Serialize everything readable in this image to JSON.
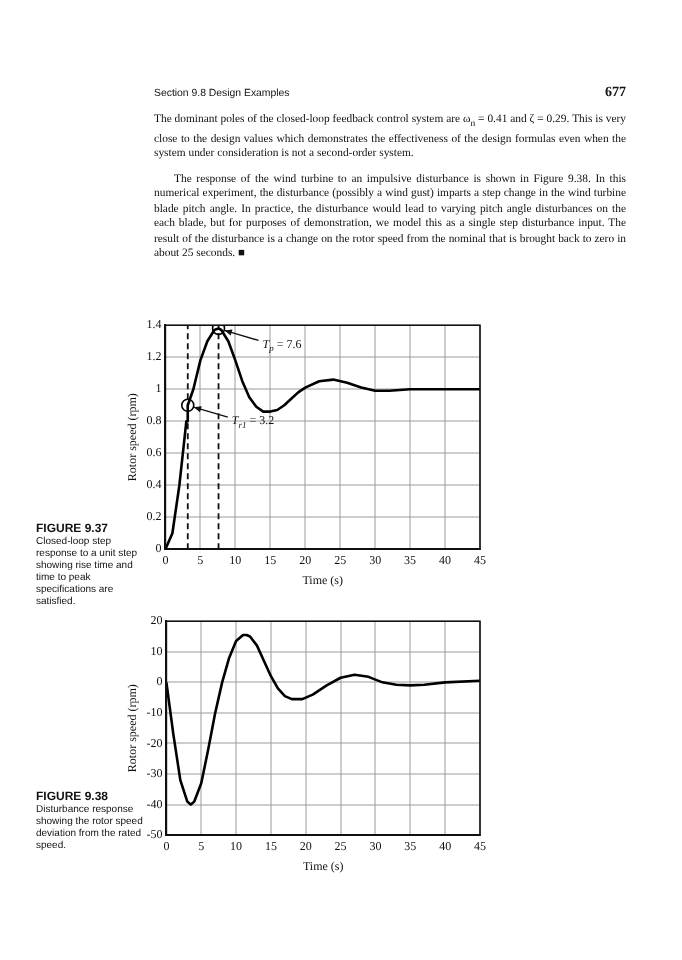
{
  "chart_data": [
    {
      "type": "line",
      "xlabel": "Time (s)",
      "ylabel": "Rotor speed (rpm)",
      "xlim": [
        0,
        45
      ],
      "xticks": [
        0,
        5,
        10,
        15,
        20,
        25,
        30,
        35,
        40,
        45
      ],
      "ylim": [
        0,
        1.4
      ],
      "yticks": [
        0,
        0.2,
        0.4,
        0.6,
        0.8,
        1,
        1.2,
        1.4
      ],
      "grid": true,
      "legend": false,
      "series": [
        {
          "color": "#000000",
          "marker": "none",
          "x": [
            0,
            1,
            2,
            3,
            3.2,
            4,
            5,
            6,
            7,
            7.6,
            8,
            9,
            10,
            11,
            12,
            13,
            14,
            15,
            16,
            17,
            18,
            19,
            20,
            22,
            24,
            26,
            28,
            30,
            32,
            35,
            38,
            41,
            45
          ],
          "values": [
            0,
            0.1,
            0.4,
            0.8,
            0.9,
            1.0,
            1.18,
            1.3,
            1.37,
            1.38,
            1.37,
            1.3,
            1.18,
            1.05,
            0.95,
            0.89,
            0.86,
            0.86,
            0.87,
            0.9,
            0.94,
            0.98,
            1.01,
            1.05,
            1.06,
            1.04,
            1.01,
            0.99,
            0.99,
            1.0,
            1.0,
            1.0,
            1.0
          ]
        },
        {
          "type": "scatter",
          "color": "#000000",
          "marker": "circle",
          "x": [
            3.2,
            7.6
          ],
          "values": [
            0.9,
            1.38
          ]
        }
      ],
      "ref_lines": [
        {
          "axis": "x",
          "value": 3.2,
          "line_style": "dashed"
        },
        {
          "axis": "x",
          "value": 7.6,
          "line_style": "dashed"
        }
      ],
      "annotations": [
        "Section 9.8   Design Examples",
        "677",
        "The dominant poles of the closed-loop feedback control system are ω$_{n}$ = 0.41 and ζ = 0.29. This is very close to the design values which demonstrates the effectiveness of the design formulas even when the system under consideration is not a second-order system.",
        "The response of the wind turbine to an impulsive disturbance is shown in Figure 9.38. In this numerical experiment, the disturbance (possibly a wind gust) imparts a step change in the wind turbine blade pitch angle. In practice, the disturbance would lead to varying pitch angle disturbances on the each blade, but for purposes of demonstration, we model this as a single step disturbance input. The result of the disturbance is a change on the rotor speed from the nominal that is brought back to zero in about 25 seconds. ■",
        "FIGURE 9.37 Closed-loop step response to a unit step showing rise time and time to peak specifications are satisfied.",
        {
          "text": "T$_{p}$ = 7.6",
          "x": 7.6,
          "y": 1.38
        },
        {
          "text": "T$_{r1}$ = 3.2",
          "x": 3.2,
          "y": 0.9
        }
      ]
    },
    {
      "type": "line",
      "xlabel": "Time (s)",
      "ylabel": "Rotor speed (rpm)",
      "xlim": [
        0,
        45
      ],
      "xticks": [
        0,
        5,
        10,
        15,
        20,
        25,
        30,
        35,
        40,
        45
      ],
      "ylim": [
        -50,
        20
      ],
      "yticks": [
        -50,
        -40,
        -30,
        -20,
        -10,
        0,
        10,
        20
      ],
      "grid": true,
      "legend": false,
      "series": [
        {
          "color": "#000000",
          "marker": "none",
          "x": [
            0,
            1,
            2,
            3,
            3.5,
            4,
            5,
            6,
            7,
            8,
            9,
            10,
            11,
            11.5,
            12,
            13,
            14,
            15,
            16,
            17,
            18,
            19.5,
            21,
            23,
            25,
            27,
            29,
            31,
            33,
            35,
            37,
            40,
            45
          ],
          "values": [
            0,
            -17,
            -32,
            -39,
            -40,
            -39,
            -33,
            -22,
            -10,
            0,
            8,
            13.5,
            15.5,
            15.5,
            15,
            12,
            7,
            2,
            -2,
            -4.5,
            -5.5,
            -5.5,
            -4,
            -1,
            1.5,
            2.5,
            1.8,
            0,
            -0.8,
            -1,
            -0.8,
            0,
            0.5
          ]
        }
      ],
      "annotations": [
        "FIGURE 9.38 Disturbance response showing the rotor speed deviation from the rated speed."
      ]
    }
  ]
}
